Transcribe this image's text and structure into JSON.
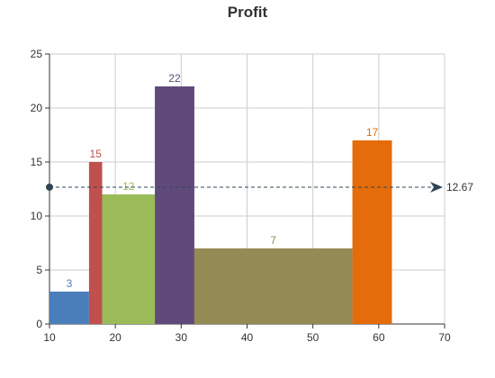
{
  "chart_data": {
    "type": "bar",
    "title": "Profit",
    "xlabel": "",
    "ylabel": "",
    "xlim": [
      10,
      70
    ],
    "ylim": [
      0,
      25
    ],
    "x_ticks": [
      "10",
      "20",
      "30",
      "40",
      "50",
      "60",
      "70"
    ],
    "y_ticks": [
      "0",
      "5",
      "10",
      "15",
      "20",
      "25"
    ],
    "grid": true,
    "bars": [
      {
        "x_start": 10,
        "x_end": 16,
        "value": 3,
        "label": "3",
        "color": "#4a7ebb"
      },
      {
        "x_start": 16,
        "x_end": 18,
        "value": 15,
        "label": "15",
        "color": "#c0504d"
      },
      {
        "x_start": 18,
        "x_end": 26,
        "value": 12,
        "label": "12",
        "color": "#9bbb59"
      },
      {
        "x_start": 26,
        "x_end": 32,
        "value": 22,
        "label": "22",
        "color": "#604a7b"
      },
      {
        "x_start": 32,
        "x_end": 56,
        "value": 7,
        "label": "7",
        "color": "#948a54"
      },
      {
        "x_start": 56,
        "x_end": 62,
        "value": 17,
        "label": "17",
        "color": "#e46c0a"
      }
    ],
    "mark_line": {
      "value": 12.67,
      "label": "12.67",
      "color": "#2f4554"
    }
  }
}
